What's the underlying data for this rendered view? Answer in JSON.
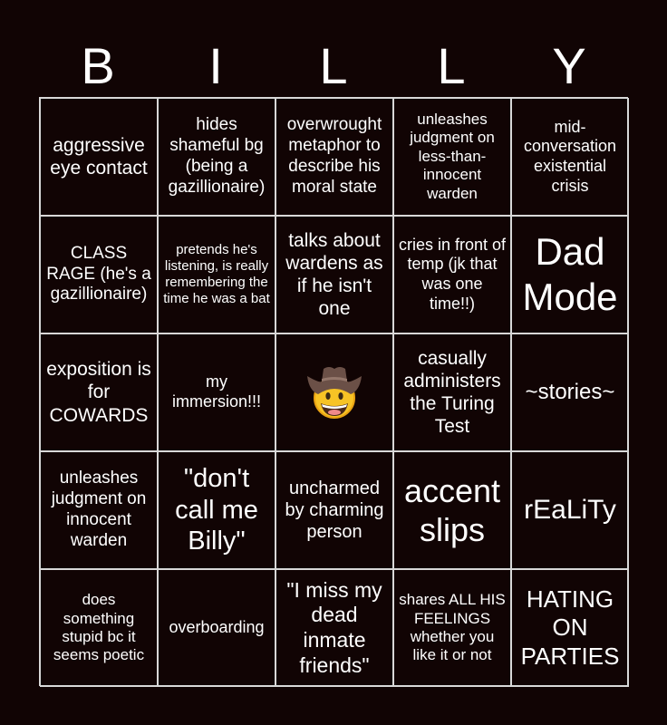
{
  "colors": {
    "background": "#110404",
    "text": "#ffffff",
    "grid": "#d8d8d8"
  },
  "header": [
    "B",
    "I",
    "L",
    "L",
    "Y"
  ],
  "cells": [
    {
      "text": "aggressive eye contact",
      "size": 21
    },
    {
      "text": "hides shameful bg (being a gazillionaire)",
      "size": 19
    },
    {
      "text": "overwrought metaphor to describe his moral state",
      "size": 19
    },
    {
      "text": "unleashes judgment on less-than-innocent warden",
      "size": 17
    },
    {
      "text": "mid-conversation existential crisis",
      "size": 18
    },
    {
      "text": "CLASS RAGE (he's a gazillionaire)",
      "size": 19
    },
    {
      "text": "pretends he's listening, is really remembering the time he was a bat",
      "size": 15
    },
    {
      "text": "talks about wardens as if he isn't one",
      "size": 21
    },
    {
      "text": "cries in front of temp (jk that was one time!!)",
      "size": 18
    },
    {
      "text": "Dad Mode",
      "size": 42
    },
    {
      "text": "exposition is for COWARDS",
      "size": 21
    },
    {
      "text": "my immersion!!!",
      "size": 18
    },
    {
      "text": "",
      "free": true,
      "icon": "cowboy-hat-face-icon"
    },
    {
      "text": "casually administers the Turing Test",
      "size": 21
    },
    {
      "text": "~stories~",
      "size": 24
    },
    {
      "text": "unleashes judgment on innocent warden",
      "size": 19
    },
    {
      "text": "\"don't call me Billy\"",
      "size": 29
    },
    {
      "text": "uncharmed by charming person",
      "size": 20
    },
    {
      "text": "accent slips",
      "size": 36
    },
    {
      "text": "rEaLiTy",
      "size": 30
    },
    {
      "text": "does something stupid bc it seems poetic",
      "size": 17
    },
    {
      "text": "overboarding",
      "size": 18
    },
    {
      "text": "\"I miss my dead inmate friends\"",
      "size": 23
    },
    {
      "text": "shares ALL HIS FEELINGS whether you like it or not",
      "size": 17
    },
    {
      "text": "HATING ON PARTIES",
      "size": 26
    }
  ]
}
